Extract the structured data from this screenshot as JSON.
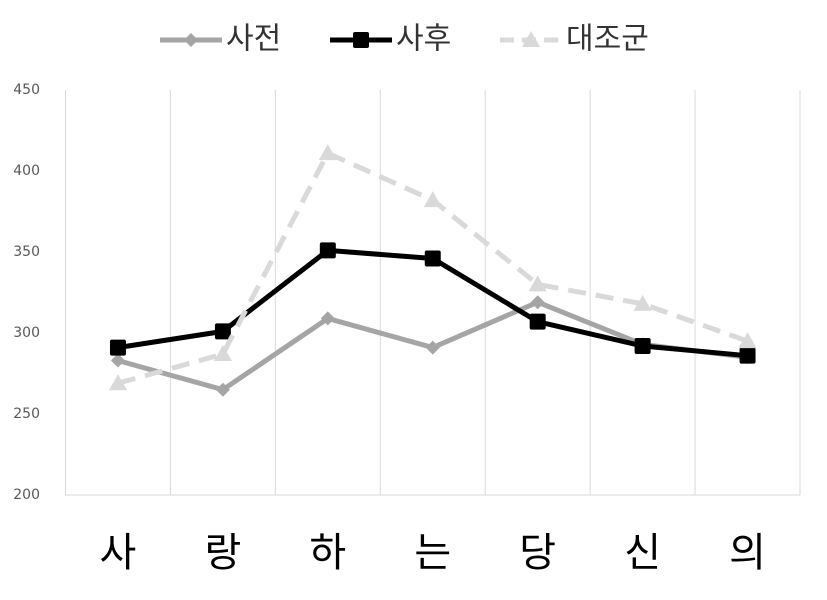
{
  "chart_data": {
    "type": "line",
    "categories": [
      "사",
      "랑",
      "하",
      "는",
      "당",
      "신",
      "의"
    ],
    "ylim": [
      200,
      450
    ],
    "yticks": [
      200,
      250,
      300,
      350,
      400,
      450
    ],
    "legend": "top",
    "series": [
      {
        "name": "사전",
        "color": "#a5a5a5",
        "marker": "diamond",
        "dashed": false,
        "values": [
          283,
          265,
          309,
          291,
          319,
          293,
          285
        ]
      },
      {
        "name": "사후",
        "color": "#000000",
        "marker": "square",
        "dashed": false,
        "values": [
          291,
          301,
          351,
          346,
          307,
          292,
          286
        ]
      },
      {
        "name": "대조군",
        "color": "#d9d9d9",
        "marker": "triangle",
        "dashed": true,
        "values": [
          269,
          287,
          411,
          382,
          330,
          318,
          295
        ]
      }
    ]
  }
}
